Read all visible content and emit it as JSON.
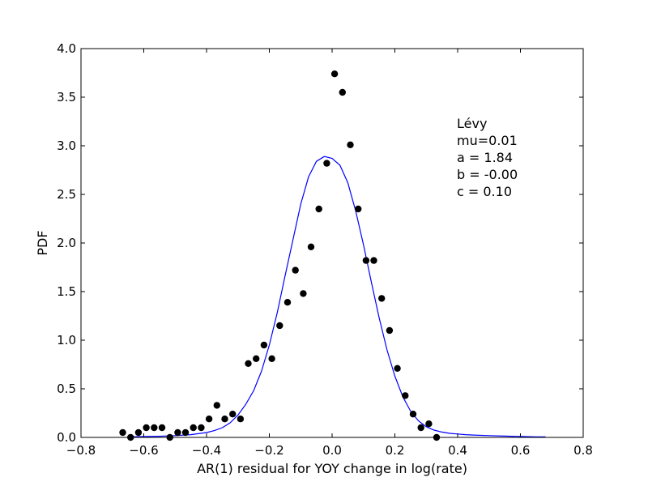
{
  "chart_data": {
    "type": "scatter",
    "xlabel": "AR(1) residual for YOY change in log(rate)",
    "ylabel": "PDF",
    "xlim": [
      -0.8,
      0.8
    ],
    "ylim": [
      0,
      4.0
    ],
    "x_ticks": [
      -0.8,
      -0.6,
      -0.4,
      -0.2,
      0.0,
      0.2,
      0.4,
      0.6,
      0.8
    ],
    "x_tick_labels": [
      "−0.8",
      "−0.6",
      "−0.4",
      "−0.2",
      "0.0",
      "0.2",
      "0.4",
      "0.6",
      "0.8"
    ],
    "y_ticks": [
      0,
      0.5,
      1.0,
      1.5,
      2.0,
      2.5,
      3.0,
      3.5,
      4.0
    ],
    "y_tick_labels": [
      "0.0",
      "0.5",
      "1.0",
      "1.5",
      "2.0",
      "2.5",
      "3.0",
      "3.5",
      "4.0"
    ],
    "grid": false,
    "legend": "none",
    "annotation_lines": [
      "Lévy",
      "mu=0.01",
      "a = 1.84",
      "b = -0.00",
      "c = 0.10"
    ],
    "series": [
      {
        "kind": "scatter",
        "color": "#000000",
        "x": [
          -0.667,
          -0.642,
          -0.617,
          -0.592,
          -0.567,
          -0.542,
          -0.517,
          -0.492,
          -0.467,
          -0.442,
          -0.417,
          -0.392,
          -0.367,
          -0.342,
          -0.317,
          -0.292,
          -0.267,
          -0.242,
          -0.217,
          -0.192,
          -0.167,
          -0.142,
          -0.117,
          -0.092,
          -0.067,
          -0.042,
          -0.017,
          0.008,
          0.033,
          0.058,
          0.083,
          0.108,
          0.133,
          0.158,
          0.183,
          0.208,
          0.233,
          0.258,
          0.283,
          0.308,
          0.333
        ],
        "y": [
          0.05,
          0.0,
          0.05,
          0.1,
          0.1,
          0.1,
          0.0,
          0.05,
          0.05,
          0.1,
          0.1,
          0.19,
          0.33,
          0.19,
          0.24,
          0.19,
          0.76,
          0.81,
          0.95,
          0.81,
          1.15,
          1.39,
          1.72,
          1.48,
          1.96,
          2.35,
          2.82,
          3.74,
          3.55,
          3.01,
          2.35,
          1.82,
          1.82,
          1.43,
          1.1,
          0.71,
          0.43,
          0.24,
          0.1,
          0.14,
          0.0
        ]
      },
      {
        "kind": "line",
        "color": "#0000ff",
        "x": [
          -0.65,
          -0.6,
          -0.55,
          -0.5,
          -0.45,
          -0.4,
          -0.375,
          -0.35,
          -0.325,
          -0.3,
          -0.275,
          -0.25,
          -0.225,
          -0.2,
          -0.175,
          -0.15,
          -0.125,
          -0.1,
          -0.075,
          -0.05,
          -0.025,
          0.0,
          0.025,
          0.05,
          0.075,
          0.1,
          0.125,
          0.15,
          0.175,
          0.2,
          0.225,
          0.25,
          0.275,
          0.3,
          0.325,
          0.35,
          0.375,
          0.4,
          0.425,
          0.45,
          0.5,
          0.55,
          0.6,
          0.65,
          0.68
        ],
        "y": [
          0.005,
          0.008,
          0.012,
          0.018,
          0.028,
          0.05,
          0.07,
          0.1,
          0.15,
          0.23,
          0.34,
          0.48,
          0.68,
          0.95,
          1.28,
          1.66,
          2.03,
          2.4,
          2.68,
          2.84,
          2.89,
          2.87,
          2.8,
          2.62,
          2.33,
          1.98,
          1.6,
          1.23,
          0.9,
          0.63,
          0.42,
          0.27,
          0.17,
          0.11,
          0.075,
          0.055,
          0.042,
          0.035,
          0.028,
          0.024,
          0.018,
          0.013,
          0.009,
          0.006,
          0.005
        ]
      }
    ]
  }
}
